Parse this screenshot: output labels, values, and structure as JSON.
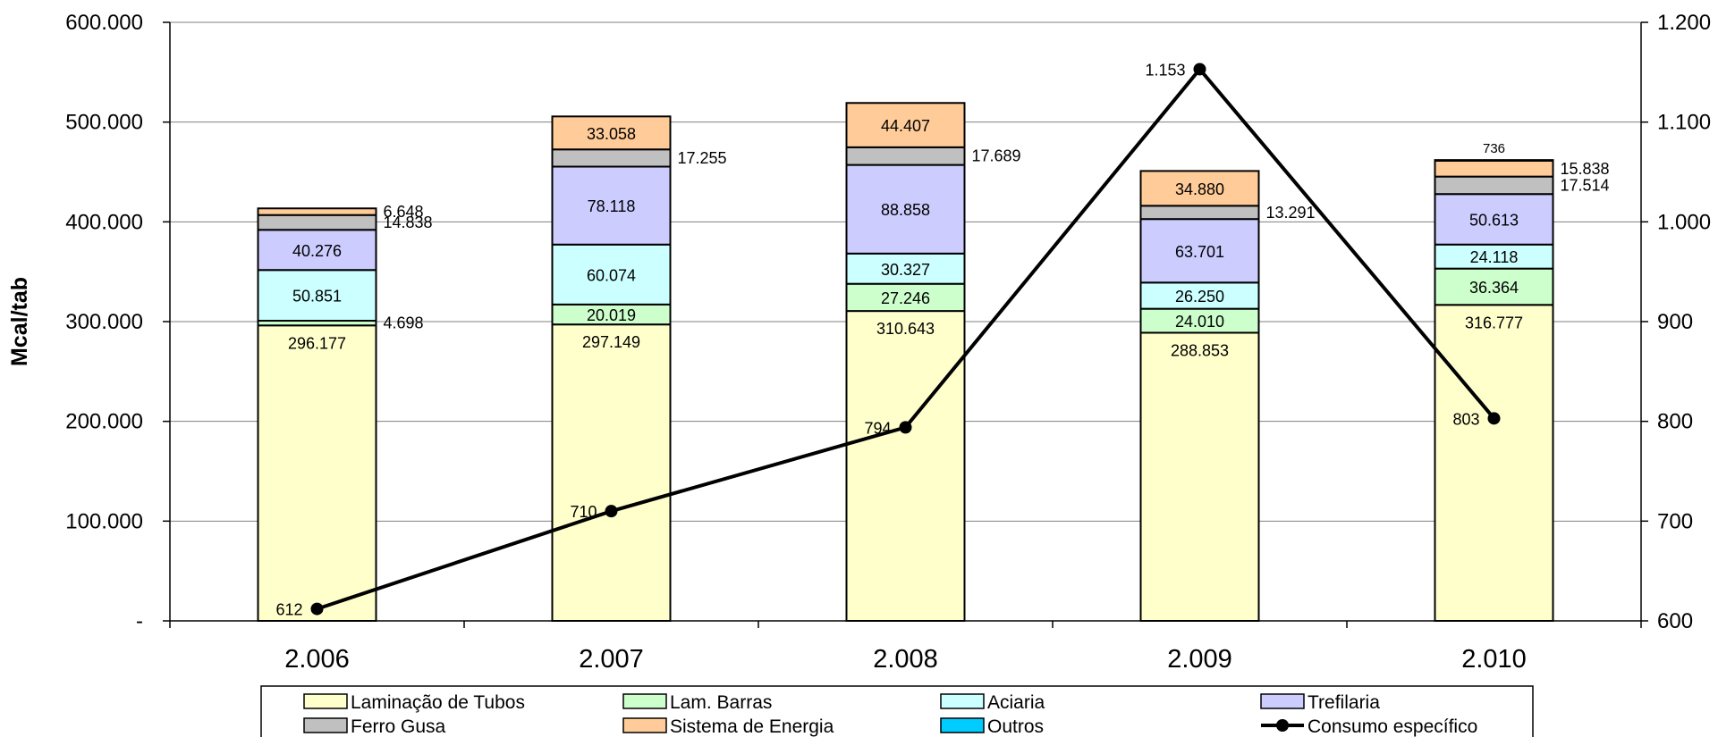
{
  "chart_data": {
    "type": "bar",
    "stacked": true,
    "categories": [
      "2.006",
      "2.007",
      "2.008",
      "2.009",
      "2.010"
    ],
    "ylabel": "Mcal/tab",
    "ylim": [
      0,
      600000
    ],
    "y_ticks": [
      "-",
      "100.000",
      "200.000",
      "300.000",
      "400.000",
      "500.000",
      "600.000"
    ],
    "y2lim": [
      600,
      1200
    ],
    "y2_ticks": [
      "600",
      "700",
      "800",
      "900",
      "1.000",
      "1.100",
      "1.200"
    ],
    "grid": true,
    "legend_position": "bottom",
    "series": [
      {
        "name": "Laminação de Tubos",
        "color": "#FFFFCC",
        "values": [
          296177,
          297149,
          310643,
          288853,
          316777
        ],
        "labels": [
          "296.177",
          "297.149",
          "310.643",
          "288.853",
          "316.777"
        ]
      },
      {
        "name": "Lam. Barras",
        "color": "#CCFFCC",
        "values": [
          4698,
          20019,
          27246,
          24010,
          36364
        ],
        "labels": [
          "4.698",
          "20.019",
          "27.246",
          "24.010",
          "36.364"
        ]
      },
      {
        "name": "Aciaria",
        "color": "#CCFFFF",
        "values": [
          50851,
          60074,
          30327,
          26250,
          24118
        ],
        "labels": [
          "50.851",
          "60.074",
          "30.327",
          "26.250",
          "24.118"
        ]
      },
      {
        "name": "Trefilaria",
        "color": "#CCCCFF",
        "values": [
          40276,
          78118,
          88858,
          63701,
          50613
        ],
        "labels": [
          "40.276",
          "78.118",
          "88.858",
          "63.701",
          "50.613"
        ]
      },
      {
        "name": "Ferro Gusa",
        "color": "#C0C0C0",
        "values": [
          14838,
          17255,
          17689,
          13291,
          17514
        ],
        "labels": [
          "14.838",
          "17.255",
          "17.689",
          "13.291",
          "17.514"
        ]
      },
      {
        "name": "Sistema de Energia",
        "color": "#FFCC99",
        "values": [
          6648,
          33058,
          44407,
          34880,
          15838
        ],
        "labels": [
          "6.648",
          "33.058",
          "44.407",
          "34.880",
          "15.838"
        ]
      },
      {
        "name": "Outros",
        "color": "#00CCFF",
        "values": [
          0,
          0,
          0,
          0,
          736
        ],
        "labels": [
          "",
          "",
          "",
          "",
          "736"
        ]
      }
    ],
    "line_series": {
      "name": "Consumo específico",
      "color": "#000000",
      "axis": "right",
      "values": [
        612,
        710,
        794,
        1153,
        803
      ],
      "labels": [
        "612",
        "710",
        "794",
        "1.153",
        "803"
      ]
    }
  }
}
